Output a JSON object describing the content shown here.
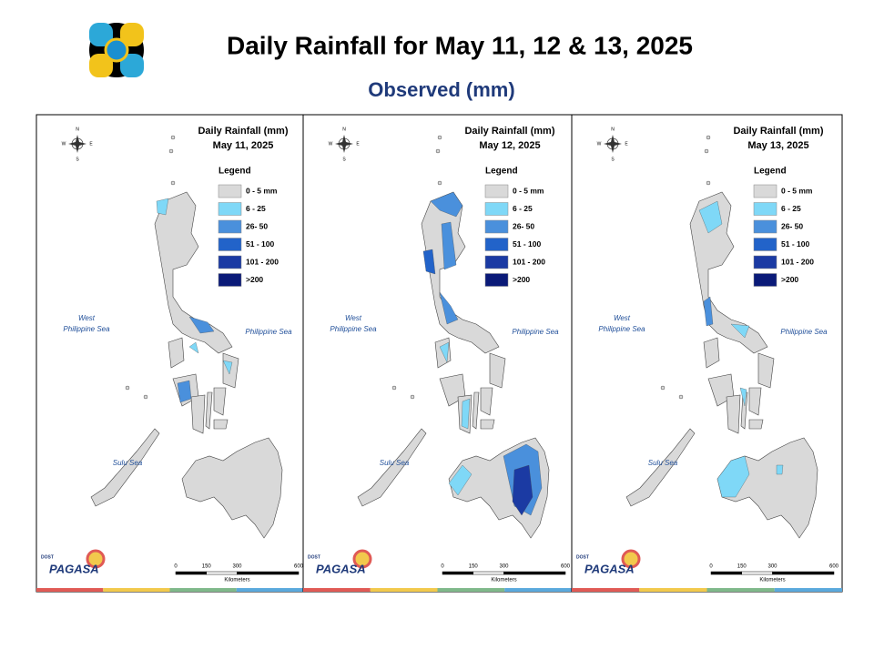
{
  "header": {
    "title": "Daily Rainfall for May 11, 12 & 13, 2025",
    "subtitle": "Observed (mm)"
  },
  "legend": {
    "title": "Legend",
    "items": [
      {
        "label": "0 - 5 mm",
        "color": "#d9d9d9"
      },
      {
        "label": "6 - 25",
        "color": "#7fd8f7"
      },
      {
        "label": "26- 50",
        "color": "#4a90dc"
      },
      {
        "label": "51 - 100",
        "color": "#2263c9"
      },
      {
        "label": "101 - 200",
        "color": "#1b3aa3"
      },
      {
        "label": ">200",
        "color": "#0a1a78"
      }
    ]
  },
  "panels": [
    {
      "title": "Daily Rainfall (mm)",
      "date": "May 11, 2025"
    },
    {
      "title": "Daily Rainfall (mm)",
      "date": "May 12, 2025"
    },
    {
      "title": "Daily Rainfall (mm)",
      "date": "May 13, 2025"
    }
  ],
  "compass": {
    "n": "N",
    "e": "E",
    "s": "S",
    "w": "W"
  },
  "seas": {
    "west": [
      "West",
      "Philippine Sea"
    ],
    "east": "Philippine Sea",
    "sulu": "Sulu Sea"
  },
  "scale": {
    "ticks": [
      0,
      150,
      300,
      600
    ],
    "unit": "Kilometers"
  },
  "logo": {
    "agency": "PAGASA",
    "dost": "DOST"
  }
}
